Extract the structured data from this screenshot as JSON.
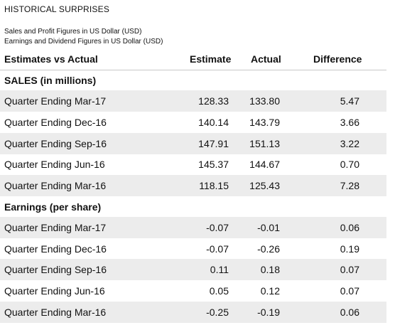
{
  "title": "HISTORICAL SURPRISES",
  "notes": [
    "Sales and Profit Figures in US Dollar (USD)",
    "Earnings and Dividend Figures in US Dollar (USD)"
  ],
  "header": {
    "label": "Estimates vs Actual",
    "estimate": "Estimate",
    "actual": "Actual",
    "difference": "Difference"
  },
  "sales": {
    "label": "SALES (in millions)",
    "rows": [
      {
        "quarter": "Quarter Ending Mar-17",
        "estimate": "128.33",
        "actual": "133.80",
        "difference": "5.47"
      },
      {
        "quarter": "Quarter Ending Dec-16",
        "estimate": "140.14",
        "actual": "143.79",
        "difference": "3.66"
      },
      {
        "quarter": "Quarter Ending Sep-16",
        "estimate": "147.91",
        "actual": "151.13",
        "difference": "3.22"
      },
      {
        "quarter": "Quarter Ending Jun-16",
        "estimate": "145.37",
        "actual": "144.67",
        "difference": "0.70"
      },
      {
        "quarter": "Quarter Ending Mar-16",
        "estimate": "118.15",
        "actual": "125.43",
        "difference": "7.28"
      }
    ]
  },
  "earnings": {
    "label": "Earnings (per share)",
    "rows": [
      {
        "quarter": "Quarter Ending Mar-17",
        "estimate": "-0.07",
        "actual": "-0.01",
        "difference": "0.06"
      },
      {
        "quarter": "Quarter Ending Dec-16",
        "estimate": "-0.07",
        "actual": "-0.26",
        "difference": "0.19"
      },
      {
        "quarter": "Quarter Ending Sep-16",
        "estimate": "0.11",
        "actual": "0.18",
        "difference": "0.07"
      },
      {
        "quarter": "Quarter Ending Jun-16",
        "estimate": "0.05",
        "actual": "0.12",
        "difference": "0.07"
      },
      {
        "quarter": "Quarter Ending Mar-16",
        "estimate": "-0.25",
        "actual": "-0.19",
        "difference": "0.06"
      }
    ]
  }
}
